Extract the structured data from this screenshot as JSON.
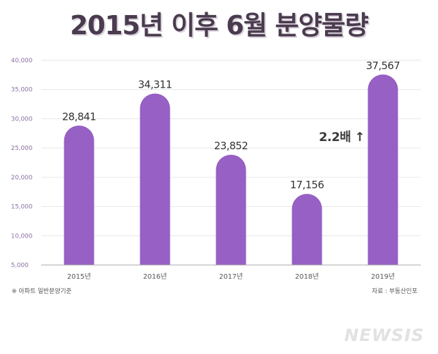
{
  "chart_data": {
    "type": "bar",
    "title": "2015년 이후 6월 분양물량",
    "categories": [
      "2015년",
      "2016년",
      "2017년",
      "2018년",
      "2019년"
    ],
    "values": [
      28841,
      34311,
      23852,
      17156,
      37567
    ],
    "value_labels": [
      "28,841",
      "34,311",
      "23,852",
      "17,156",
      "37,567"
    ],
    "y_ticks": [
      "5,000",
      "10,000",
      "15,000",
      "20,000",
      "25,000",
      "30,000",
      "35,000",
      "40,000"
    ],
    "y_tick_values": [
      5000,
      10000,
      15000,
      20000,
      25000,
      30000,
      35000,
      40000
    ],
    "ylim": [
      5000,
      40000
    ],
    "bar_color": "#9660c4",
    "annotation": "2.2배 ↑",
    "note": "※ 아파트 일반분양기준",
    "source": "자료 : 부동산인포",
    "grid": true
  },
  "watermark": "NEWSIS"
}
